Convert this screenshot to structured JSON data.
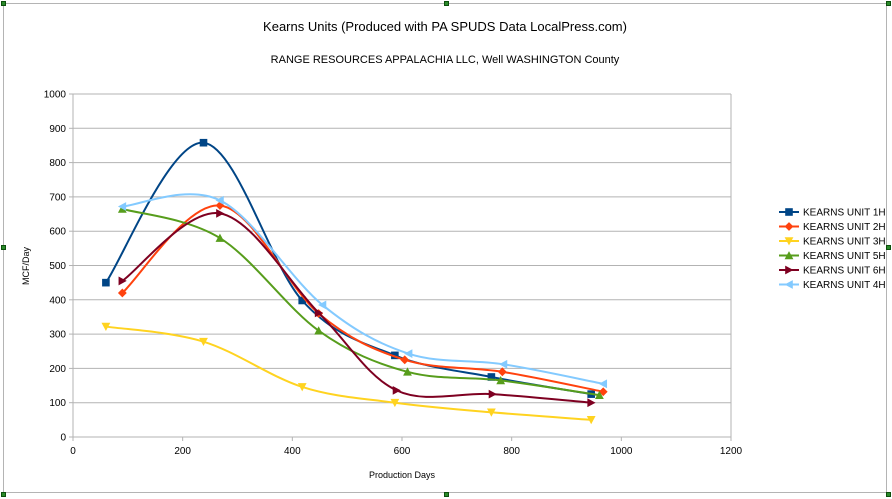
{
  "chart_data": {
    "type": "line",
    "title": "Kearns Units (Produced with PA SPUDS Data LocalPress.com)",
    "subtitle": "RANGE RESOURCES APPALACHIA LLC, Well  WASHINGTON County",
    "xlabel": "Production Days",
    "ylabel": "MCF/Day",
    "xlim": [
      0,
      1200
    ],
    "ylim": [
      0,
      1000
    ],
    "xticks": [
      "0",
      "200",
      "400",
      "600",
      "800",
      "1000",
      "1200"
    ],
    "yticks": [
      "0",
      "100",
      "200",
      "300",
      "400",
      "500",
      "600",
      "700",
      "800",
      "900",
      "1000"
    ],
    "grid": "horizontal",
    "smooth": true,
    "legend_position": "right",
    "series": [
      {
        "name": "KEARNS UNIT 1H",
        "color": "#004586",
        "marker": "square",
        "x": [
          60,
          238,
          418,
          587,
          763,
          945
        ],
        "y": [
          450,
          858,
          398,
          238,
          175,
          125
        ]
      },
      {
        "name": "KEARNS UNIT 2H",
        "color": "#ff420e",
        "marker": "diamond",
        "x": [
          90,
          268,
          448,
          605,
          783,
          967
        ],
        "y": [
          420,
          675,
          360,
          225,
          190,
          132
        ]
      },
      {
        "name": "KEARNS UNIT 3H",
        "color": "#ffd320",
        "marker": "triangle-down",
        "x": [
          60,
          238,
          418,
          587,
          763,
          945
        ],
        "y": [
          322,
          278,
          146,
          100,
          72,
          50
        ]
      },
      {
        "name": "KEARNS UNIT 5H",
        "color": "#579d1c",
        "marker": "triangle-up",
        "x": [
          90,
          268,
          448,
          610,
          780,
          960
        ],
        "y": [
          665,
          580,
          310,
          190,
          165,
          122
        ]
      },
      {
        "name": "KEARNS UNIT 6H",
        "color": "#7e0021",
        "marker": "triangle-right",
        "x": [
          90,
          268,
          448,
          590,
          765,
          945
        ],
        "y": [
          455,
          652,
          362,
          136,
          125,
          100
        ]
      },
      {
        "name": "KEARNS UNIT 4H",
        "color": "#83caff",
        "marker": "triangle-left",
        "x": [
          90,
          268,
          455,
          612,
          785,
          967
        ],
        "y": [
          672,
          690,
          385,
          243,
          212,
          155
        ]
      }
    ]
  }
}
